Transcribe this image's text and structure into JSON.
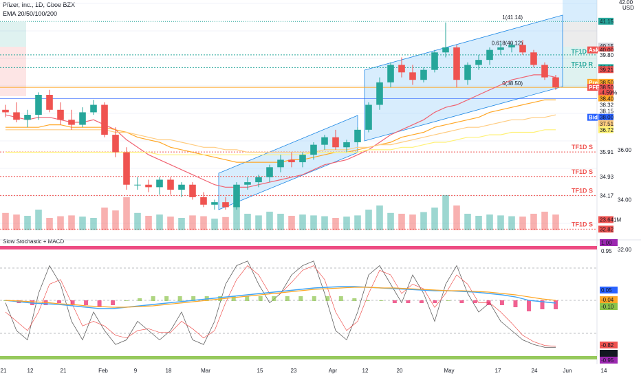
{
  "header": {
    "symbol_line": "Pfizer, Inc., 1D, Cboe BZX",
    "ema_line": "EMA 20/50/100/200"
  },
  "currency": "USD",
  "indicator_title": "Slow Stochastic + MACD",
  "colors": {
    "up": "#26a69a",
    "down": "#ef5350",
    "ema20": "#f06372",
    "ema50": "#ffa726",
    "ema100": "#ffcc80",
    "ema200": "#fff176",
    "channel_fill": "#90caf9",
    "tf_support": "#ef5350",
    "tf_resistance": "#26a69a",
    "macd": "#42a5f5",
    "signal": "#ffa726"
  },
  "chart_data": {
    "type": "candlestick",
    "title": "Pfizer, Inc., 1D, Cboe BZX",
    "price_range": [
      32.5,
      42.0
    ],
    "price_axis_ticks": [
      {
        "label": "42.00",
        "price": 42.0
      },
      {
        "label": "36.00",
        "price": 36.0
      },
      {
        "label": "34.00",
        "price": 34.0
      },
      {
        "label": "32.00",
        "price": 32.0
      }
    ],
    "time_axis": [
      "21",
      "12",
      "21",
      "Feb",
      "9",
      "18",
      "Mar",
      "15",
      "23",
      "Apr",
      "12",
      "20",
      "May",
      "17",
      "24",
      "Jun",
      "14"
    ],
    "candles_sampled": [
      {
        "o": 37.6,
        "h": 37.8,
        "l": 37.3,
        "c": 37.5
      },
      {
        "o": 37.5,
        "h": 37.9,
        "l": 37.1,
        "c": 37.2
      },
      {
        "o": 37.2,
        "h": 37.6,
        "l": 36.9,
        "c": 37.4
      },
      {
        "o": 37.4,
        "h": 38.3,
        "l": 37.2,
        "c": 38.2
      },
      {
        "o": 38.2,
        "h": 38.4,
        "l": 37.5,
        "c": 37.6
      },
      {
        "o": 37.6,
        "h": 37.9,
        "l": 37.0,
        "c": 37.2
      },
      {
        "o": 37.2,
        "h": 37.6,
        "l": 36.8,
        "c": 37.0
      },
      {
        "o": 37.0,
        "h": 37.7,
        "l": 36.9,
        "c": 37.5
      },
      {
        "o": 37.5,
        "h": 38.0,
        "l": 37.4,
        "c": 37.8
      },
      {
        "o": 37.8,
        "h": 37.9,
        "l": 36.5,
        "c": 36.6
      },
      {
        "o": 36.6,
        "h": 36.9,
        "l": 35.7,
        "c": 35.9
      },
      {
        "o": 35.9,
        "h": 36.1,
        "l": 34.4,
        "c": 34.6
      },
      {
        "o": 34.6,
        "h": 34.9,
        "l": 34.4,
        "c": 34.6
      },
      {
        "o": 34.6,
        "h": 34.8,
        "l": 34.3,
        "c": 34.5
      },
      {
        "o": 34.5,
        "h": 34.9,
        "l": 34.2,
        "c": 34.8
      },
      {
        "o": 34.8,
        "h": 34.9,
        "l": 34.2,
        "c": 34.4
      },
      {
        "o": 34.4,
        "h": 34.7,
        "l": 34.1,
        "c": 34.6
      },
      {
        "o": 34.6,
        "h": 34.7,
        "l": 34.0,
        "c": 34.1
      },
      {
        "o": 34.1,
        "h": 34.3,
        "l": 33.7,
        "c": 33.8
      },
      {
        "o": 33.8,
        "h": 34.0,
        "l": 33.6,
        "c": 33.9
      },
      {
        "o": 33.9,
        "h": 34.1,
        "l": 33.6,
        "c": 33.7
      },
      {
        "o": 33.7,
        "h": 34.7,
        "l": 33.6,
        "c": 34.6
      },
      {
        "o": 34.6,
        "h": 34.9,
        "l": 34.4,
        "c": 34.7
      },
      {
        "o": 34.7,
        "h": 35.0,
        "l": 34.5,
        "c": 34.9
      },
      {
        "o": 34.9,
        "h": 35.4,
        "l": 34.7,
        "c": 35.3
      },
      {
        "o": 35.3,
        "h": 35.8,
        "l": 35.1,
        "c": 35.6
      },
      {
        "o": 35.6,
        "h": 35.9,
        "l": 35.3,
        "c": 35.5
      },
      {
        "o": 35.5,
        "h": 35.9,
        "l": 35.3,
        "c": 35.8
      },
      {
        "o": 35.8,
        "h": 36.3,
        "l": 35.6,
        "c": 36.2
      },
      {
        "o": 36.2,
        "h": 36.6,
        "l": 36.0,
        "c": 36.5
      },
      {
        "o": 36.5,
        "h": 36.8,
        "l": 36.0,
        "c": 36.1
      },
      {
        "o": 36.1,
        "h": 36.4,
        "l": 35.9,
        "c": 36.3
      },
      {
        "o": 36.3,
        "h": 36.9,
        "l": 36.2,
        "c": 36.8
      },
      {
        "o": 36.8,
        "h": 37.9,
        "l": 36.7,
        "c": 37.8
      },
      {
        "o": 37.8,
        "h": 38.9,
        "l": 37.6,
        "c": 38.7
      },
      {
        "o": 38.7,
        "h": 39.5,
        "l": 38.5,
        "c": 39.4
      },
      {
        "o": 39.4,
        "h": 39.7,
        "l": 38.9,
        "c": 39.1
      },
      {
        "o": 39.1,
        "h": 39.4,
        "l": 38.6,
        "c": 38.8
      },
      {
        "o": 38.8,
        "h": 39.3,
        "l": 38.7,
        "c": 39.2
      },
      {
        "o": 39.2,
        "h": 40.0,
        "l": 39.1,
        "c": 39.9
      },
      {
        "o": 39.9,
        "h": 41.1,
        "l": 39.7,
        "c": 40.1
      },
      {
        "o": 40.1,
        "h": 40.2,
        "l": 38.5,
        "c": 38.8
      },
      {
        "o": 38.8,
        "h": 39.5,
        "l": 38.6,
        "c": 39.4
      },
      {
        "o": 39.4,
        "h": 39.8,
        "l": 39.2,
        "c": 39.6
      },
      {
        "o": 39.6,
        "h": 40.1,
        "l": 39.4,
        "c": 40.0
      },
      {
        "o": 40.0,
        "h": 40.3,
        "l": 39.8,
        "c": 40.1
      },
      {
        "o": 40.1,
        "h": 40.3,
        "l": 39.9,
        "c": 40.2
      },
      {
        "o": 40.2,
        "h": 40.4,
        "l": 39.8,
        "c": 39.9
      },
      {
        "o": 39.9,
        "h": 40.0,
        "l": 39.3,
        "c": 39.4
      },
      {
        "o": 39.4,
        "h": 39.5,
        "l": 38.8,
        "c": 38.9
      },
      {
        "o": 38.9,
        "h": 39.0,
        "l": 38.4,
        "c": 38.5
      }
    ],
    "ema_series": [
      {
        "name": "EMA 20",
        "values": [
          37.4,
          37.3,
          37.2,
          37.3,
          37.3,
          37.2,
          37.1,
          37.1,
          37.2,
          37.0,
          36.8,
          36.4,
          36.1,
          35.8,
          35.6,
          35.4,
          35.2,
          35.0,
          34.8,
          34.6,
          34.5,
          34.5,
          34.5,
          34.6,
          34.7,
          34.8,
          34.9,
          35.0,
          35.2,
          35.4,
          35.5,
          35.6,
          35.8,
          36.0,
          36.3,
          36.6,
          36.8,
          37.0,
          37.2,
          37.5,
          37.7,
          37.8,
          38.0,
          38.2,
          38.4,
          38.6,
          38.8,
          38.9,
          39.0,
          39.0,
          38.9
        ]
      },
      {
        "name": "EMA 50",
        "values": [
          36.9,
          36.9,
          36.9,
          36.9,
          37.0,
          37.0,
          36.9,
          36.9,
          36.9,
          36.9,
          36.8,
          36.7,
          36.5,
          36.4,
          36.3,
          36.1,
          36.0,
          35.9,
          35.8,
          35.7,
          35.6,
          35.5,
          35.5,
          35.5,
          35.5,
          35.5,
          35.6,
          35.6,
          35.7,
          35.8,
          35.9,
          35.9,
          36.0,
          36.1,
          36.2,
          36.3,
          36.5,
          36.6,
          36.7,
          36.9,
          37.0,
          37.1,
          37.2,
          37.3,
          37.5,
          37.6,
          37.7,
          37.8,
          37.9,
          38.0,
          38.0
        ]
      },
      {
        "name": "EMA 100",
        "values": [
          36.8,
          36.8,
          36.8,
          36.8,
          36.8,
          36.8,
          36.8,
          36.8,
          36.8,
          36.8,
          36.7,
          36.7,
          36.6,
          36.5,
          36.4,
          36.4,
          36.3,
          36.2,
          36.1,
          36.1,
          36.0,
          36.0,
          35.9,
          35.9,
          35.9,
          35.9,
          35.9,
          35.9,
          35.9,
          36.0,
          36.0,
          36.0,
          36.1,
          36.1,
          36.2,
          36.2,
          36.3,
          36.4,
          36.5,
          36.6,
          36.7,
          36.8,
          36.9,
          36.9,
          37.0,
          37.1,
          37.2,
          37.2,
          37.3,
          37.3,
          37.4
        ]
      },
      {
        "name": "EMA 200",
        "values": [
          35.9,
          35.9,
          35.9,
          35.9,
          35.9,
          35.9,
          35.9,
          35.9,
          35.9,
          35.9,
          35.9,
          35.9,
          35.9,
          35.9,
          35.8,
          35.8,
          35.8,
          35.8,
          35.8,
          35.8,
          35.8,
          35.8,
          35.8,
          35.8,
          35.8,
          35.8,
          35.8,
          35.8,
          35.9,
          35.9,
          35.9,
          35.9,
          35.9,
          36.0,
          36.0,
          36.0,
          36.1,
          36.1,
          36.2,
          36.3,
          36.3,
          36.4,
          36.5,
          36.5,
          36.6,
          36.6,
          36.7,
          36.7,
          36.7,
          36.8,
          36.8
        ]
      }
    ],
    "right_axis_labels": [
      {
        "label": "41.15",
        "price": 41.15,
        "bg": "#26a69a",
        "fg": "#ffffff"
      },
      {
        "label": "40.15",
        "price": 40.15,
        "bg": "#d1d4dc",
        "fg": "#131722"
      },
      {
        "label": "40.00",
        "price": 40.0,
        "bg": "#ef5350",
        "fg": "#ffffff",
        "tag": "Ask"
      },
      {
        "label": "39.80",
        "price": 39.8,
        "bg": "#ffffff",
        "fg": "#131722"
      },
      {
        "label": "39.29",
        "price": 39.29,
        "bg": "#26a69a",
        "fg": "#ffffff"
      },
      {
        "label": "39.21",
        "price": 39.21,
        "bg": "#ef5350",
        "fg": "#ffffff"
      },
      {
        "label": "38.50",
        "price": 38.7,
        "bg": "#ffa726",
        "fg": "#ffffff",
        "tag": "Pre"
      },
      {
        "label": "38.50",
        "price": 38.5,
        "bg": "#ef5350",
        "fg": "#ffffff",
        "tag": "PFE"
      },
      {
        "label": "-4.59%",
        "price": 38.3,
        "bg": "#ef5350",
        "fg": "#ffffff"
      },
      {
        "label": "38.40",
        "price": 38.05,
        "bg": "#ffa726",
        "fg": "#ffffff"
      },
      {
        "label": "38.32",
        "price": 37.8,
        "bg": "#ffffff",
        "fg": "#131722"
      },
      {
        "label": "38.15",
        "price": 37.55,
        "bg": "#ffffff",
        "fg": "#131722"
      },
      {
        "label": "38.00",
        "price": 37.3,
        "bg": "#2962ff",
        "fg": "#ffffff",
        "tag": "Bid"
      },
      {
        "label": "37.51",
        "price": 37.05,
        "bg": "#ffcc80",
        "fg": "#131722"
      },
      {
        "label": "36.72",
        "price": 36.8,
        "bg": "#fff176",
        "fg": "#131722"
      },
      {
        "label": "35.91",
        "price": 35.91,
        "bg": "#ffffff",
        "fg": "#131722"
      },
      {
        "label": "34.93",
        "price": 34.93,
        "bg": "#ffffff",
        "fg": "#131722"
      },
      {
        "label": "34.17",
        "price": 34.17,
        "bg": "#ffffff",
        "fg": "#131722"
      },
      {
        "label": "23.641M",
        "price": 33.2,
        "bg": "#ef5350",
        "fg": "#ffffff"
      },
      {
        "label": "32.82",
        "price": 32.82,
        "bg": "#ef5350",
        "fg": "#ffffff"
      }
    ],
    "support_resistance": [
      {
        "label": "TF1D R",
        "price": 39.8,
        "kind": "resistance"
      },
      {
        "label": "TF1D R",
        "price": 39.29,
        "kind": "resistance"
      },
      {
        "label": "TF1D S",
        "price": 35.91,
        "kind": "support"
      },
      {
        "label": "TF1D S",
        "price": 34.93,
        "kind": "support"
      },
      {
        "label": "TF1D S",
        "price": 34.17,
        "kind": "support"
      },
      {
        "label": "TF1D S",
        "price": 32.82,
        "kind": "support"
      }
    ],
    "fib_labels": [
      {
        "label": "1(41.14)",
        "price": 41.14
      },
      {
        "label": "0.618(40.12)",
        "price": 40.12
      },
      {
        "label": "0(38.50)",
        "price": 38.5
      }
    ],
    "volume_sampled": [
      0.42,
      0.38,
      0.35,
      0.5,
      0.3,
      0.34,
      0.36,
      0.33,
      0.3,
      0.55,
      0.48,
      0.8,
      0.42,
      0.35,
      0.38,
      0.33,
      0.3,
      0.36,
      0.34,
      0.28,
      0.32,
      0.6,
      0.4,
      0.36,
      0.45,
      0.4,
      0.35,
      0.38,
      0.36,
      0.34,
      0.3,
      0.33,
      0.36,
      0.5,
      0.6,
      0.42,
      0.4,
      0.38,
      0.44,
      0.55,
      0.85,
      0.6,
      0.4,
      0.35,
      0.38,
      0.36,
      0.34,
      0.33,
      0.4,
      0.45,
      0.38
    ],
    "indicator": {
      "name": "Slow Stochastic + MACD",
      "axis_labels": [
        "1.00",
        "0.95",
        "0.05",
        "-0.04",
        "-0.10",
        "-0.82",
        "-0.83",
        "-0.95"
      ],
      "stoch_k": [
        0.5,
        0.2,
        0.1,
        0.6,
        0.9,
        0.7,
        0.3,
        0.1,
        0.4,
        0.2,
        0.05,
        0.1,
        0.3,
        0.2,
        0.1,
        0.2,
        0.4,
        0.1,
        0.05,
        0.3,
        0.7,
        0.9,
        0.95,
        0.7,
        0.5,
        0.6,
        0.8,
        0.9,
        0.95,
        0.6,
        0.2,
        0.1,
        0.4,
        0.8,
        0.9,
        0.7,
        0.5,
        0.8,
        0.6,
        0.3,
        0.7,
        0.9,
        0.6,
        0.4,
        0.5,
        0.3,
        0.2,
        0.1,
        0.05,
        0.02,
        0.02
      ],
      "stoch_d": [
        0.4,
        0.3,
        0.2,
        0.4,
        0.7,
        0.75,
        0.5,
        0.25,
        0.3,
        0.25,
        0.15,
        0.12,
        0.2,
        0.22,
        0.18,
        0.18,
        0.3,
        0.22,
        0.12,
        0.2,
        0.5,
        0.75,
        0.9,
        0.8,
        0.6,
        0.6,
        0.72,
        0.85,
        0.9,
        0.75,
        0.4,
        0.2,
        0.3,
        0.6,
        0.85,
        0.8,
        0.6,
        0.7,
        0.65,
        0.45,
        0.6,
        0.8,
        0.7,
        0.5,
        0.5,
        0.4,
        0.28,
        0.15,
        0.08,
        0.04,
        0.03
      ],
      "macd": [
        0.0,
        -0.02,
        -0.04,
        -0.05,
        -0.06,
        -0.08,
        -0.1,
        -0.12,
        -0.12,
        -0.1,
        -0.08,
        -0.06,
        -0.04,
        -0.02,
        0.0,
        0.02,
        0.04,
        0.06,
        0.08,
        0.1,
        0.12,
        0.14,
        0.16,
        0.18,
        0.19,
        0.2,
        0.2,
        0.19,
        0.18,
        0.17,
        0.16,
        0.15,
        0.14,
        0.14,
        0.13,
        0.12,
        0.1,
        0.08,
        0.05,
        0.0,
        -0.02,
        -0.04
      ],
      "signal": [
        0.0,
        -0.01,
        -0.02,
        -0.03,
        -0.05,
        -0.06,
        -0.08,
        -0.09,
        -0.1,
        -0.1,
        -0.09,
        -0.08,
        -0.06,
        -0.04,
        -0.02,
        0.0,
        0.02,
        0.04,
        0.06,
        0.08,
        0.1,
        0.12,
        0.14,
        0.16,
        0.17,
        0.18,
        0.19,
        0.19,
        0.18,
        0.18,
        0.17,
        0.16,
        0.15,
        0.14,
        0.14,
        0.13,
        0.12,
        0.1,
        0.08,
        0.05,
        0.02,
        0.0
      ]
    }
  }
}
